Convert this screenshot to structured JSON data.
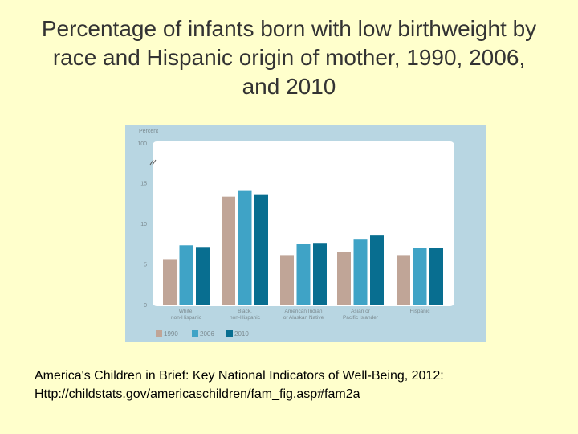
{
  "slide": {
    "title": "Percentage of infants born with low birthweight by race and Hispanic origin of mother, 1990, 2006, and 2010"
  },
  "caption": {
    "line1": "America's Children in Brief: Key National Indicators of Well-Being, 2012:",
    "line2": "Http://childstats.gov/americaschildren/fam_fig.asp#fam2a"
  },
  "colors": {
    "panel_bg": "#b8d6e2",
    "plot_bg": "#ffffff",
    "c1990": "#c0a597",
    "c2006": "#3fa3c6",
    "c2010": "#086e90",
    "tick_text": "#7b8a90"
  },
  "chart_data": {
    "type": "bar",
    "ylabel": "Percent",
    "ylim": [
      0,
      100
    ],
    "y_break": true,
    "yticks": [
      0,
      5,
      10,
      15,
      100
    ],
    "ytick_labels": [
      "0",
      "5",
      "10",
      "15",
      "100"
    ],
    "categories": [
      [
        "White,",
        "non-Hispanic"
      ],
      [
        "Black,",
        "non-Hispanic"
      ],
      [
        "American Indian",
        "or Alaskan Native"
      ],
      [
        "Asian or",
        "Pacific Islander"
      ],
      [
        "Hispanic"
      ]
    ],
    "series": [
      {
        "name": "1990",
        "values": [
          5.6,
          13.3,
          6.1,
          6.5,
          6.1
        ]
      },
      {
        "name": "2006",
        "values": [
          7.3,
          14.0,
          7.5,
          8.1,
          7.0
        ]
      },
      {
        "name": "2010",
        "values": [
          7.1,
          13.5,
          7.6,
          8.5,
          7.0
        ]
      }
    ],
    "legend_position": "bottom-left",
    "grid": false
  }
}
